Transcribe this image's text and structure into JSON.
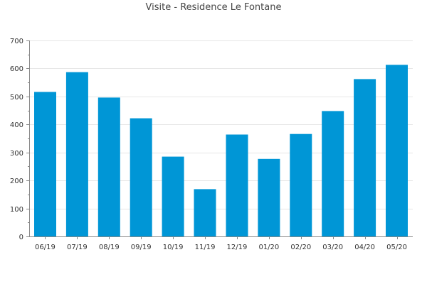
{
  "chart_data": {
    "type": "bar",
    "title": "Visite - Residence Le Fontane",
    "xlabel": "",
    "ylabel": "",
    "categories": [
      "06/19",
      "07/19",
      "08/19",
      "09/19",
      "10/19",
      "11/19",
      "12/19",
      "01/20",
      "02/20",
      "03/20",
      "04/20",
      "05/20"
    ],
    "values": [
      516,
      587,
      496,
      422,
      285,
      169,
      364,
      277,
      366,
      448,
      562,
      613
    ],
    "ylim": [
      0,
      700
    ],
    "yticks": [
      0,
      100,
      200,
      300,
      400,
      500,
      600,
      700
    ],
    "grid": true,
    "legend": "none",
    "colors": {
      "bar": "#0096d6",
      "grid": "#e6e6e6",
      "axis": "#888888"
    }
  }
}
